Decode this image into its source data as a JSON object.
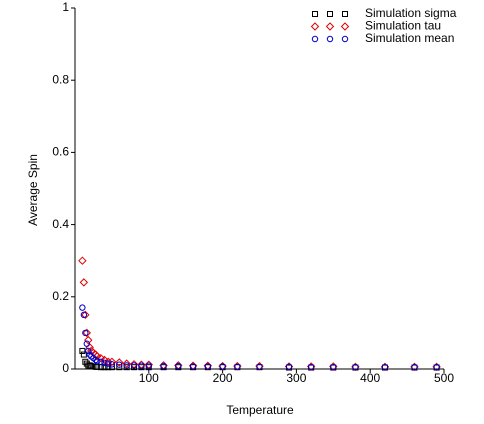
{
  "chart_data": {
    "type": "scatter",
    "x_label": "Temperature",
    "y_label": "Average Spin",
    "xlim": [
      0,
      500
    ],
    "ylim": [
      0,
      1
    ],
    "xticks": [
      100,
      200,
      300,
      400,
      500
    ],
    "yticks": [
      0,
      0.2,
      0.4,
      0.6,
      0.8,
      1
    ],
    "legend": "upper right",
    "series": [
      {
        "name": "Simulation sigma",
        "color": "#000000",
        "marker": "square",
        "x": [
          10,
          12,
          14,
          16,
          18,
          20,
          22,
          25,
          28,
          30,
          35,
          40,
          45,
          50,
          60,
          70,
          80,
          90,
          100,
          120,
          140,
          160,
          180,
          200,
          220,
          250,
          290,
          320,
          350,
          380,
          420,
          460,
          490
        ],
        "values": [
          0.05,
          0.04,
          0.02,
          0.015,
          0.01,
          0.01,
          0.008,
          0.007,
          0.006,
          0.006,
          0.005,
          0.005,
          0.005,
          0.005,
          0.005,
          0.005,
          0.005,
          0.005,
          0.005,
          0.005,
          0.005,
          0.005,
          0.005,
          0.005,
          0.005,
          0.005,
          0.004,
          0.004,
          0.004,
          0.004,
          0.004,
          0.004,
          0.004
        ]
      },
      {
        "name": "Simulation tau",
        "color": "#e00000",
        "marker": "diamond",
        "x": [
          10,
          12,
          14,
          16,
          18,
          20,
          22,
          25,
          28,
          30,
          35,
          40,
          45,
          50,
          60,
          70,
          80,
          90,
          100,
          120,
          140,
          160,
          180,
          200,
          220,
          250,
          290,
          320,
          350,
          380,
          420,
          460,
          490
        ],
        "values": [
          0.3,
          0.24,
          0.15,
          0.1,
          0.08,
          0.06,
          0.05,
          0.045,
          0.04,
          0.035,
          0.03,
          0.025,
          0.02,
          0.02,
          0.018,
          0.015,
          0.013,
          0.012,
          0.012,
          0.01,
          0.01,
          0.009,
          0.009,
          0.008,
          0.008,
          0.008,
          0.007,
          0.007,
          0.007,
          0.006,
          0.006,
          0.006,
          0.006
        ]
      },
      {
        "name": "Simulation mean",
        "color": "#0000cc",
        "marker": "circle",
        "x": [
          10,
          12,
          14,
          16,
          18,
          20,
          22,
          25,
          28,
          30,
          35,
          40,
          45,
          50,
          60,
          70,
          80,
          90,
          100,
          120,
          140,
          160,
          180,
          200,
          220,
          250,
          290,
          320,
          350,
          380,
          420,
          460,
          490
        ],
        "values": [
          0.17,
          0.15,
          0.1,
          0.07,
          0.05,
          0.04,
          0.035,
          0.03,
          0.025,
          0.022,
          0.02,
          0.017,
          0.015,
          0.013,
          0.012,
          0.01,
          0.01,
          0.009,
          0.009,
          0.008,
          0.008,
          0.007,
          0.007,
          0.007,
          0.006,
          0.006,
          0.006,
          0.005,
          0.005,
          0.005,
          0.005,
          0.005,
          0.005
        ]
      }
    ]
  }
}
